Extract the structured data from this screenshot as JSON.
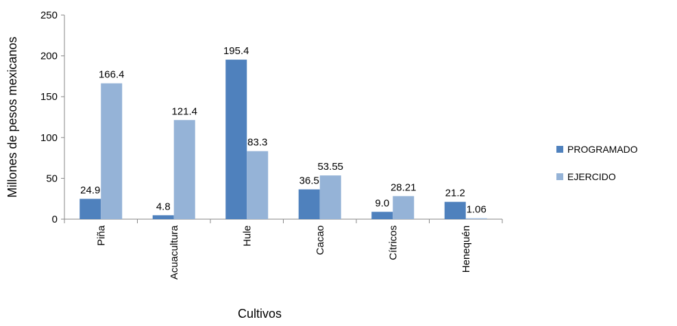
{
  "chart_data": {
    "type": "bar",
    "categories": [
      "Piña",
      "Acuacultura",
      "Hule",
      "Cacao",
      "Cítricos",
      "Henequén"
    ],
    "series": [
      {
        "name": "PROGRAMADO",
        "color": "#4f81bd",
        "values": [
          24.9,
          4.8,
          195.4,
          36.5,
          9.0,
          21.2
        ],
        "labels": [
          "24.9",
          "4.8",
          "195.4",
          "36.5",
          "9.0",
          "21.2"
        ]
      },
      {
        "name": "EJERCIDO",
        "color": "#95b3d7",
        "values": [
          166.4,
          121.4,
          83.3,
          53.55,
          28.21,
          1.06
        ],
        "labels": [
          "166.4",
          "121.4",
          "83.3",
          "53.55",
          "28.21",
          "1.06"
        ]
      }
    ],
    "xlabel": "Cultivos",
    "ylabel": "Millones de pesos mexicanos",
    "ylim": [
      0,
      250
    ],
    "yticks": [
      0,
      50,
      100,
      150,
      200,
      250
    ],
    "grid": false,
    "legend_position": "right"
  }
}
